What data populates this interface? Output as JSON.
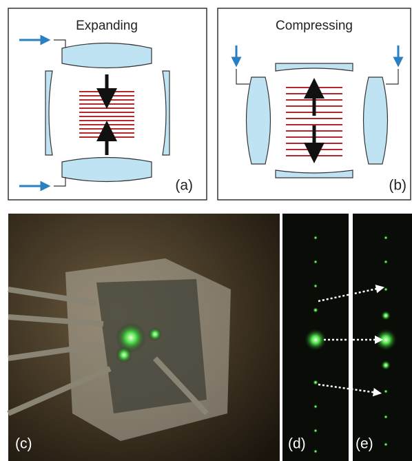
{
  "panels": [
    {
      "title": "Expanding",
      "label": "(a)"
    },
    {
      "title": "Compressing",
      "label": "(b)"
    },
    {
      "label": "(c)"
    },
    {
      "label": "(d)"
    },
    {
      "label": "(e)"
    }
  ]
}
